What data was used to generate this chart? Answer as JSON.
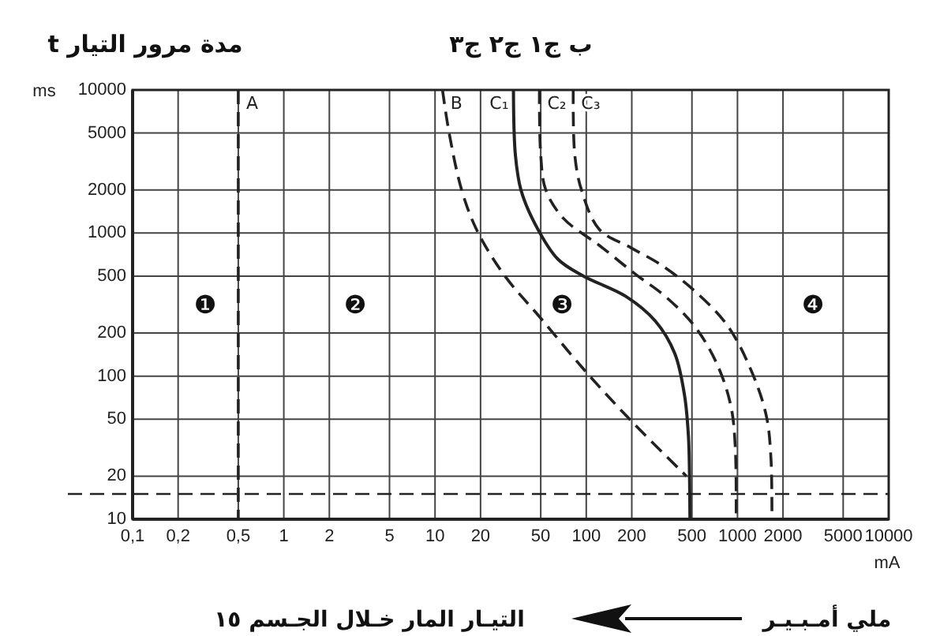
{
  "chart_data": {
    "type": "line",
    "ylabel": "مدة مرور التيار t",
    "subtitle": "ب ج١ ج٢ ج٣",
    "xlabel": "التيـار المار خـلال الجـسم ١٥",
    "annotations": [
      "ms",
      "mA",
      "ملي أمـبـيـر",
      "❶",
      "❷",
      "❸",
      "❹"
    ],
    "log": "xy",
    "xlim": [
      0.1,
      10000
    ],
    "ylim": [
      10,
      10000
    ],
    "xticks": [
      {
        "value": 0.1,
        "label": "0,1"
      },
      {
        "value": 0.2,
        "label": "0,2"
      },
      {
        "value": 0.5,
        "label": "0,5"
      },
      1,
      2,
      5,
      10,
      20,
      50,
      100,
      200,
      500,
      1000,
      2000,
      5000,
      10000
    ],
    "yticks": [
      10,
      20,
      50,
      100,
      200,
      500,
      1000,
      2000,
      5000,
      10000
    ],
    "grid": true,
    "ref_lines": [
      {
        "axis": "y",
        "value": 15,
        "line_style": "dashed",
        "color": "#222222"
      }
    ],
    "series": [
      {
        "name": "A",
        "color": "#222222",
        "line_style": "dashed",
        "x": [
          0.5,
          0.5
        ],
        "values": [
          10000,
          10
        ]
      },
      {
        "name": "B",
        "color": "#222222",
        "line_style": "dashed",
        "x": [
          11.2,
          12.4,
          15,
          18.8,
          28.6,
          50,
          96,
          197,
          460
        ],
        "values": [
          10000,
          5000,
          2000,
          1060,
          510,
          254,
          112,
          49,
          20
        ]
      },
      {
        "name": "C₁",
        "color": "#222222",
        "line_style": "solid",
        "x": [
          33,
          34,
          37,
          46,
          65,
          96,
          182,
          286,
          385,
          447,
          474,
          482,
          485
        ],
        "values": [
          10000,
          3500,
          2000,
          1150,
          656,
          500,
          362,
          243,
          144,
          73,
          38,
          20,
          10
        ]
      },
      {
        "name": "C₂",
        "color": "#222222",
        "line_style": "dashed",
        "x": [
          49,
          50,
          54,
          71,
          122,
          212,
          332,
          521,
          731,
          904,
          967,
          980
        ],
        "values": [
          10000,
          3500,
          2000,
          1260,
          820,
          515,
          362,
          223,
          122,
          62,
          32,
          10
        ]
      },
      {
        "name": "C₃",
        "color": "#222222",
        "line_style": "dashed",
        "x": [
          82,
          84,
          93,
          122,
          198,
          309,
          521,
          866,
          1263,
          1556,
          1664,
          1690
        ],
        "values": [
          10000,
          3500,
          2000,
          1060,
          788,
          603,
          394,
          223,
          103,
          52,
          27,
          10
        ]
      }
    ]
  }
}
